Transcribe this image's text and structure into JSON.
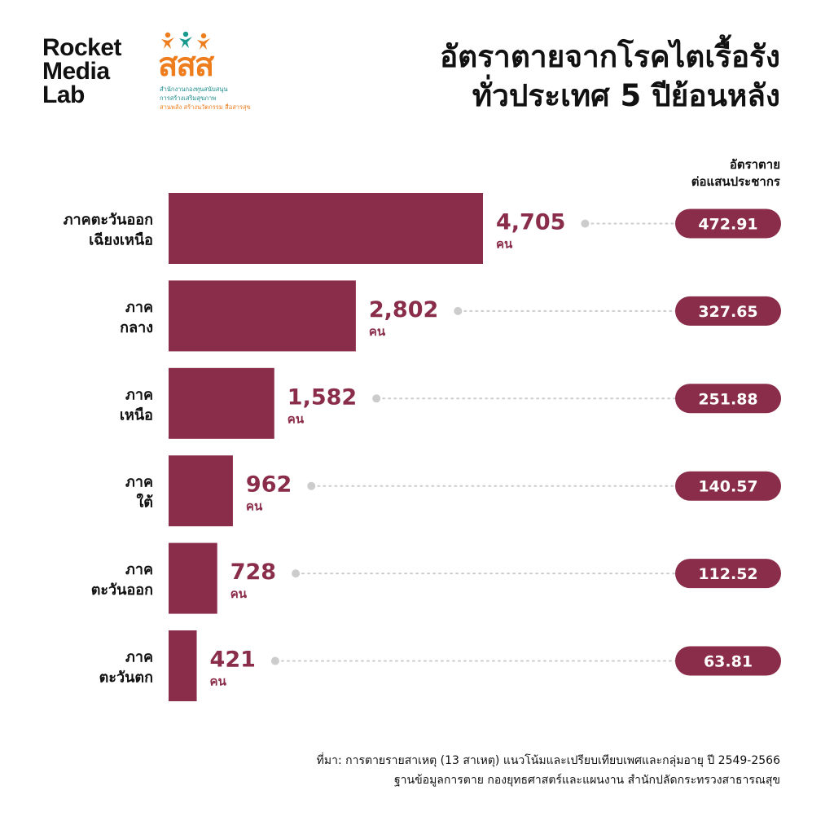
{
  "brand": {
    "rocket_lines": [
      "Rocket",
      "Media",
      "Lab"
    ],
    "thaihealth_mark": "สสส",
    "thaihealth_line1": "สำนักงานกองทุนสนับสนุน",
    "thaihealth_line2": "การสร้างเสริมสุขภาพ",
    "thaihealth_line3": "สานพลัง สร้างนวัตกรรม สื่อสารสุข"
  },
  "title_lines": [
    "อัตราตายจากโรคไตเรื้อรัง",
    "ทั่วประเทศ 5 ปีย้อนหลัง"
  ],
  "rate_header_lines": [
    "อัตราตาย",
    "ต่อแสนประชากร"
  ],
  "colors": {
    "bar": "#8a2d4a",
    "value_text": "#8a2d4a",
    "pill": "#8a2d4a",
    "pill_text": "#ffffff",
    "dots": "#cccccc"
  },
  "chart_data": {
    "type": "bar",
    "orientation": "horizontal",
    "categories": [
      [
        "ภาคตะวันออก",
        "เฉียงเหนือ"
      ],
      [
        "ภาค",
        "กลาง"
      ],
      [
        "ภาค",
        "เหนือ"
      ],
      [
        "ภาค",
        "ใต้"
      ],
      [
        "ภาค",
        "ตะวันออก"
      ],
      [
        "ภาค",
        "ตะวันตก"
      ]
    ],
    "values": [
      4705,
      2802,
      1582,
      962,
      728,
      421
    ],
    "value_labels": [
      "4,705",
      "2,802",
      "1,582",
      "962",
      "728",
      "421"
    ],
    "unit": "คน",
    "rates": [
      "472.91",
      "327.65",
      "251.88",
      "140.57",
      "112.52",
      "63.81"
    ]
  },
  "source_lines": [
    "ที่มา: การตายรายสาเหตุ (13 สาเหตุ) แนวโน้มและเปรียบเทียบเพศและกลุ่มอายุ ปี 2549-2566",
    "ฐานข้อมูลการตาย กองยุทธศาสตร์และแผนงาน สำนักปลัดกระทรวงสาธารณสุข"
  ]
}
